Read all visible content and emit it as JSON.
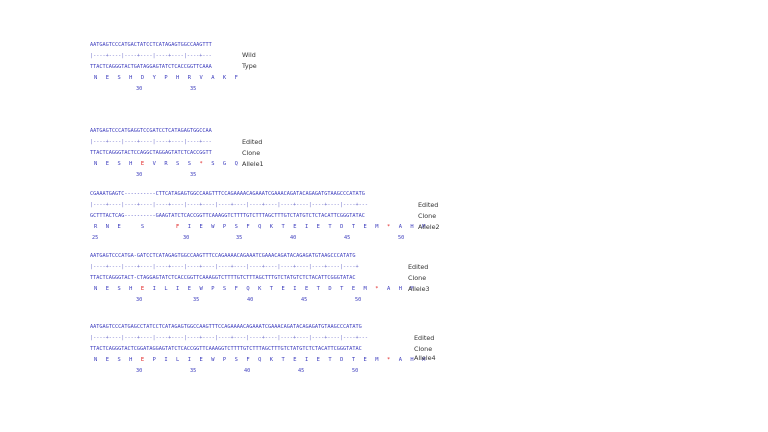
{
  "alignments": [
    {
      "id": "wild",
      "top_seq": "AATGAGTCCCATGACTATCCTCATAGAGTGGCCAAGTTT",
      "ruler": "|----+----|----+----|----+----|----+---",
      "bottom_seq": "TTACTCAGGGTACTGATAGGAGTATCTCACCGGTTCAAA",
      "aa": [
        "N",
        "E",
        "S",
        "H",
        "D",
        "Y",
        "P",
        "H",
        "R",
        "V",
        "A",
        "K",
        "F"
      ],
      "aa_red": [],
      "numbers": [
        "30",
        "35"
      ],
      "label1": "Wild",
      "label2": "Type"
    },
    {
      "id": "allele1",
      "top_seq": "AATGAGTCCCATGAGGTCCGATCCTCATAGAGTGGCCAA",
      "ruler": "|----+----|----+----|----+----|----+---",
      "bottom_seq": "TTACTCAGGGTACTCCAGGCTAGGAGTATCTCACCGGTT",
      "aa": [
        "N",
        "E",
        "S",
        "H",
        "E",
        "V",
        "R",
        "S",
        "S",
        "*",
        "S",
        "G",
        "Q"
      ],
      "aa_red": [
        4,
        9
      ],
      "numbers": [
        "30",
        "35"
      ],
      "label1": "Edited",
      "label2": "Clone",
      "label3": "Allele1"
    },
    {
      "id": "allele2",
      "top_seq": "CGAAATGAGTC----------CTTCATAGAGTGGCCAAGTTTCCAGAAAACAGAAATCGAAACAGATACAGAGATGTAAGCCCATATG",
      "ruler": "|----+----|----+----|----+----|----+----|----+----|----+----|----+----|----+----|----+---",
      "bottom_seq": "GCTTTACTCAG----------GAAGTATCTCACCGGTTCAAAGGTCTTTTGTCTTTAGCTTTGTCTATGTCTCTACATTCGGGTATAC",
      "aa": [
        "R",
        "N",
        "E",
        " ",
        "S",
        " ",
        " ",
        "F",
        "I",
        "E",
        "W",
        "P",
        "S",
        "F",
        "Q",
        "K",
        "T",
        "E",
        "I",
        "E",
        "T",
        "D",
        "T",
        "E",
        "M",
        "*",
        "A",
        "H",
        "M"
      ],
      "aa_red": [
        7,
        25
      ],
      "numbers": [
        "25",
        "30",
        "35",
        "40",
        "45",
        "50"
      ],
      "label1": "Edited",
      "label2": "Clone",
      "label3": "Allele2"
    },
    {
      "id": "allele3",
      "top_seq": "AATGAGTCCCATGA-GATCCTCATAGAGTGGCCAAGTTTCCAGAAAACAGAAATCGAAACAGATACAGAGATGTAAGCCCATATG",
      "ruler": "|----+----|----+----|----+----|----+----|----+----|----+----|----+----|----+----|----+",
      "bottom_seq": "TTACTCAGGGTACT-CTAGGAGTATCTCACCGGTTCAAAGGTCTTTTGTCTTTAGCTTTGTCTATGTCTCTACATTCGGGTATAC",
      "aa": [
        "N",
        "E",
        "S",
        "H",
        "E",
        "I",
        "L",
        "I",
        "E",
        "W",
        "P",
        "S",
        "F",
        "Q",
        "K",
        "T",
        "E",
        "I",
        "E",
        "T",
        "D",
        "T",
        "E",
        "M",
        "*",
        "A",
        "H",
        "M"
      ],
      "aa_red": [
        4,
        24
      ],
      "numbers": [
        "30",
        "35",
        "40",
        "45",
        "50"
      ],
      "label1": "Edited",
      "label2": "Clone",
      "label3": "Allele3"
    },
    {
      "id": "allele4",
      "top_seq": "AATGAGTCCCATGAGCCTATCCTCATAGAGTGGCCAAGTTTCCAGAAAACAGAAATCGAAACAGATACAGAGATGTAAGCCCATATG",
      "ruler": "|----+----|----+----|----+----|----+----|----+----|----+----|----+----|----+----|----+---",
      "bottom_seq": "TTACTCAGGGTACTCGGATAGGAGTATCTCACCGGTTCAAAGGTCTTTTGTCTTTAGCTTTGTCTATGTCTCTACATTCGGGTATAC",
      "aa": [
        "N",
        "E",
        "S",
        "H",
        "E",
        "P",
        "I",
        "L",
        "I",
        "E",
        "W",
        "P",
        "S",
        "F",
        "Q",
        "K",
        "T",
        "E",
        "I",
        "E",
        "T",
        "D",
        "T",
        "E",
        "M",
        "*",
        "A",
        "H",
        "M"
      ],
      "aa_red": [
        4,
        25
      ],
      "numbers": [
        "30",
        "35",
        "40",
        "45",
        "50"
      ],
      "label1": "Edited",
      "label2": "Clone",
      "label3": "Allele4"
    }
  ]
}
